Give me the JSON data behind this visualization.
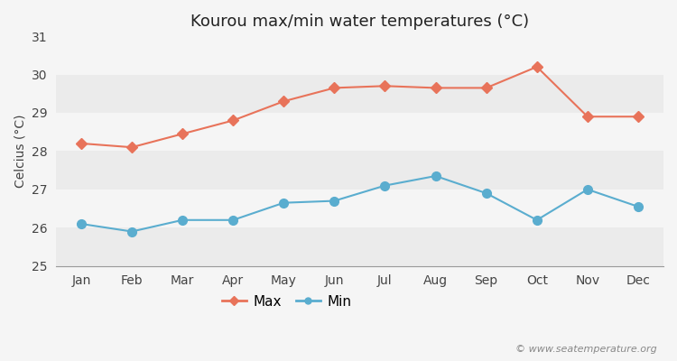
{
  "title": "Kourou max/min water temperatures (°C)",
  "ylabel": "Celcius (°C)",
  "months": [
    "Jan",
    "Feb",
    "Mar",
    "Apr",
    "May",
    "Jun",
    "Jul",
    "Aug",
    "Sep",
    "Oct",
    "Nov",
    "Dec"
  ],
  "max_temps": [
    28.2,
    28.1,
    28.45,
    28.8,
    29.3,
    29.65,
    29.7,
    29.65,
    29.65,
    30.2,
    28.9,
    28.9
  ],
  "min_temps": [
    26.1,
    25.9,
    26.2,
    26.2,
    26.65,
    26.7,
    27.1,
    27.35,
    26.9,
    26.2,
    27.0,
    26.55
  ],
  "max_color": "#e8735a",
  "min_color": "#5aadcf",
  "fig_bg_color": "#f5f5f5",
  "plot_bg_color": "#ffffff",
  "band_color_light": "#ebebeb",
  "band_color_white": "#f5f5f5",
  "ylim": [
    25,
    31
  ],
  "yticks": [
    25,
    26,
    27,
    28,
    29,
    30,
    31
  ],
  "legend_labels": [
    "Max",
    "Min"
  ],
  "watermark": "© www.seatemperature.org",
  "title_fontsize": 13,
  "label_fontsize": 10,
  "tick_fontsize": 10,
  "legend_fontsize": 11
}
